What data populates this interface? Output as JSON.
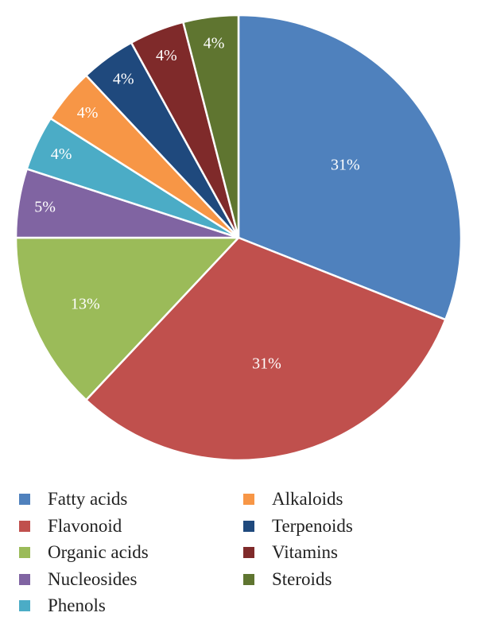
{
  "chart_data": {
    "type": "pie",
    "categories": [
      "Fatty acids",
      "Flavonoid",
      "Organic acids",
      "Nucleosides",
      "Phenols",
      "Alkaloids",
      "Terpenoids",
      "Vitamins",
      "Steroids"
    ],
    "values": [
      31,
      31,
      13,
      5,
      4,
      4,
      4,
      4,
      4
    ],
    "labels": [
      "31%",
      "31%",
      "13%",
      "5%",
      "4%",
      "4%",
      "4%",
      "4%",
      "4%"
    ],
    "colors": [
      "#4f81bd",
      "#c0504d",
      "#9bbb59",
      "#8064a2",
      "#4bacc6",
      "#f79646",
      "#1f497d",
      "#7f2a2a",
      "#5f7530"
    ],
    "start_angle_deg": 0,
    "direction": "clockwise",
    "legend": {
      "placement": "bottom",
      "columns": [
        [
          "Fatty acids",
          "Flavonoid",
          "Organic acids",
          "Nucleosides",
          "Phenols"
        ],
        [
          "Alkaloids",
          "Terpenoids",
          "Vitamins",
          "Steroids"
        ]
      ]
    }
  }
}
